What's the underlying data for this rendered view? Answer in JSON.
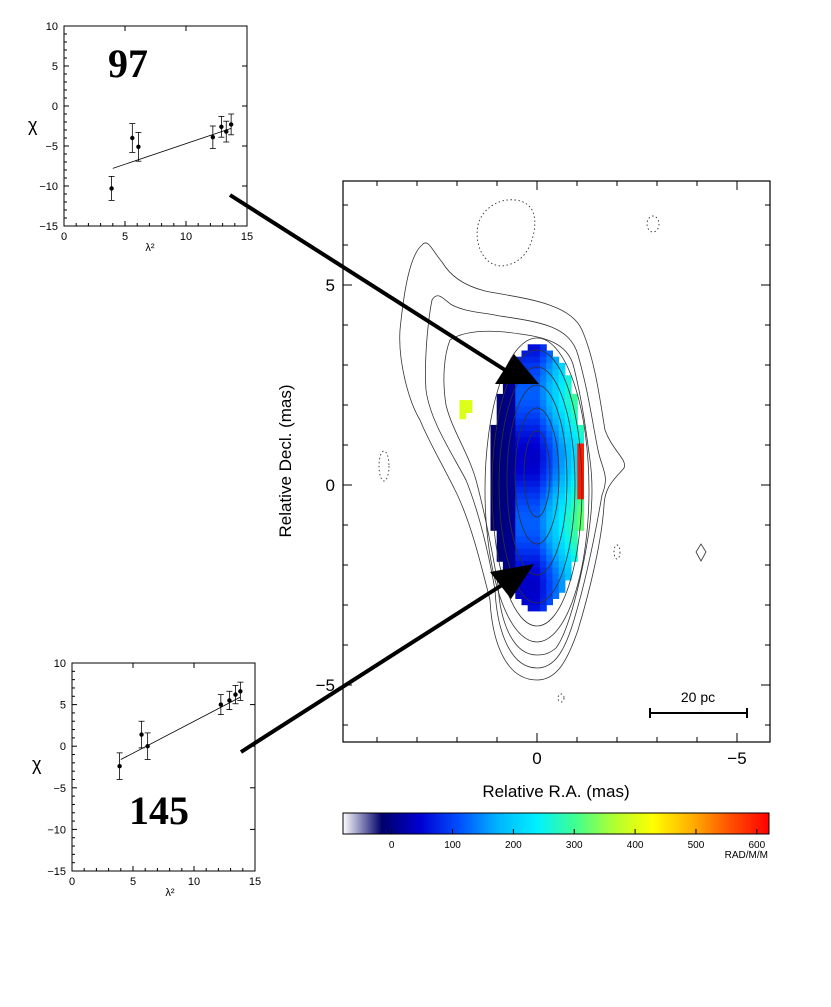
{
  "chart_data": [
    {
      "type": "scatter",
      "panel_label": "97",
      "xlabel": "λ²",
      "ylabel": "χ",
      "xlim": [
        0,
        15
      ],
      "ylim": [
        -15,
        10
      ],
      "xticks": [
        "0",
        "5",
        "10",
        "15"
      ],
      "yticks": [
        "10",
        "5",
        "0",
        "−5",
        "−10",
        "−15"
      ],
      "points": [
        {
          "x": 3.9,
          "y": -10.3,
          "err": 1.5
        },
        {
          "x": 5.6,
          "y": -4.0,
          "err": 1.8
        },
        {
          "x": 6.1,
          "y": -5.1,
          "err": 1.8
        },
        {
          "x": 12.2,
          "y": -3.9,
          "err": 1.4
        },
        {
          "x": 12.9,
          "y": -2.6,
          "err": 1.3
        },
        {
          "x": 13.3,
          "y": -3.2,
          "err": 1.3
        },
        {
          "x": 13.7,
          "y": -2.3,
          "err": 1.3
        }
      ],
      "fit_line": [
        {
          "x": 4.0,
          "y": -7.8
        },
        {
          "x": 13.7,
          "y": -2.8
        }
      ]
    },
    {
      "type": "scatter",
      "panel_label": "145",
      "xlabel": "λ²",
      "ylabel": "χ",
      "xlim": [
        0,
        15
      ],
      "ylim": [
        -15,
        10
      ],
      "xticks": [
        "0",
        "5",
        "10",
        "15"
      ],
      "yticks": [
        "10",
        "5",
        "0",
        "−5",
        "−10",
        "−15"
      ],
      "points": [
        {
          "x": 3.9,
          "y": -2.4,
          "err": 1.6
        },
        {
          "x": 5.7,
          "y": 1.4,
          "err": 1.6
        },
        {
          "x": 6.2,
          "y": 0.0,
          "err": 1.6
        },
        {
          "x": 12.2,
          "y": 5.0,
          "err": 1.2
        },
        {
          "x": 12.9,
          "y": 5.5,
          "err": 1.1
        },
        {
          "x": 13.4,
          "y": 6.2,
          "err": 1.1
        },
        {
          "x": 13.8,
          "y": 6.6,
          "err": 1.1
        }
      ],
      "fit_line": [
        {
          "x": 4.0,
          "y": -1.6
        },
        {
          "x": 13.8,
          "y": 5.9
        }
      ]
    },
    {
      "type": "heatmap",
      "xlabel": "Relative R.A. (mas)",
      "ylabel": "Relative Decl. (mas)",
      "xlim": [
        5.1,
        -5.8
      ],
      "ylim": [
        -6.4,
        7.6
      ],
      "xticks": [
        "0",
        "−5"
      ],
      "yticks": [
        "5",
        "0",
        "−5"
      ],
      "scale_bar_label": "20 pc",
      "colorbar": {
        "range": [
          -80,
          620
        ],
        "ticks": [
          "0",
          "100",
          "200",
          "300",
          "400",
          "500",
          "600"
        ],
        "unit_label": "RAD/M/M",
        "colors": [
          "#ffffff",
          "#00006a",
          "#0000d2",
          "#0050ff",
          "#00b4ff",
          "#00f0ff",
          "#40ff90",
          "#b0ff30",
          "#ffff00",
          "#ffb000",
          "#ff5000",
          "#ff0000"
        ]
      }
    }
  ]
}
